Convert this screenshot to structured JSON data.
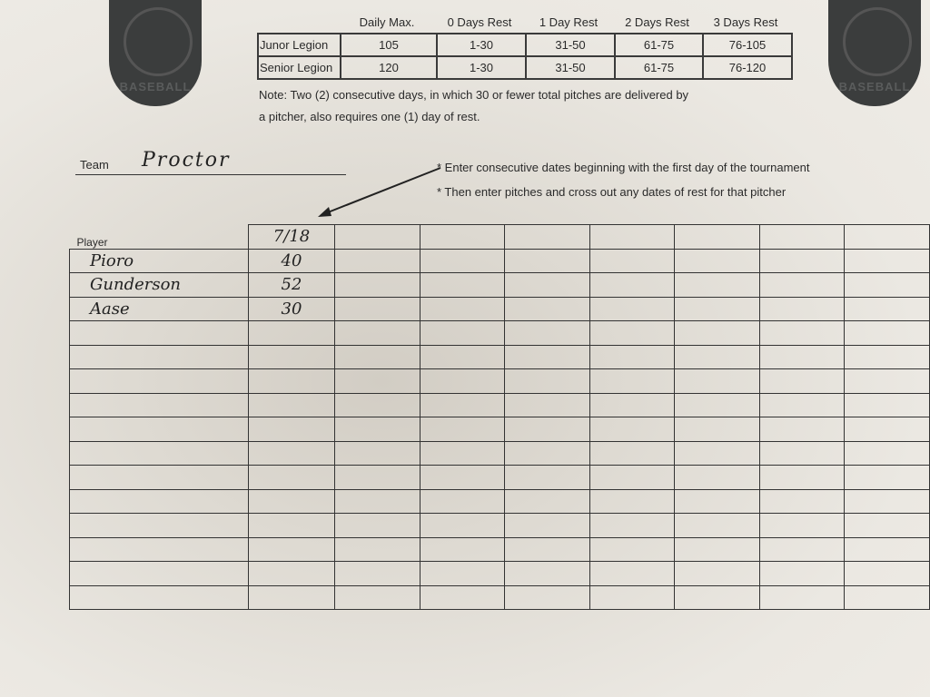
{
  "logos": {
    "left_text": "BASEBALL",
    "right_text": "BASEBALL"
  },
  "rules_table": {
    "headers": [
      "Daily Max.",
      "0 Days Rest",
      "1 Day Rest",
      "2 Days Rest",
      "3 Days Rest"
    ],
    "rows": [
      {
        "label": "Junor Legion",
        "values": [
          "105",
          "1-30",
          "31-50",
          "61-75",
          "76-105"
        ]
      },
      {
        "label": "Senior Legion",
        "values": [
          "120",
          "1-30",
          "31-50",
          "61-75",
          "76-120"
        ]
      }
    ]
  },
  "note_line1": "Note:  Two (2) consecutive days, in which 30 or fewer total pitches are delivered by",
  "note_line2": "a pitcher, also requires one (1) day of rest.",
  "team": {
    "label": "Team",
    "value": "Proctor"
  },
  "instructions": [
    "* Enter consecutive dates beginning with the first day of the tournament",
    "* Then enter pitches and cross out any dates of rest for that pitcher"
  ],
  "grid": {
    "player_header": "Player",
    "dates": [
      "7/18",
      "",
      "",
      "",
      "",
      "",
      "",
      "",
      ""
    ],
    "rows": [
      {
        "player": "Pioro",
        "pitches": [
          "40"
        ]
      },
      {
        "player": "Gunderson",
        "pitches": [
          "52"
        ]
      },
      {
        "player": "Aase",
        "pitches": [
          "30"
        ]
      }
    ]
  }
}
